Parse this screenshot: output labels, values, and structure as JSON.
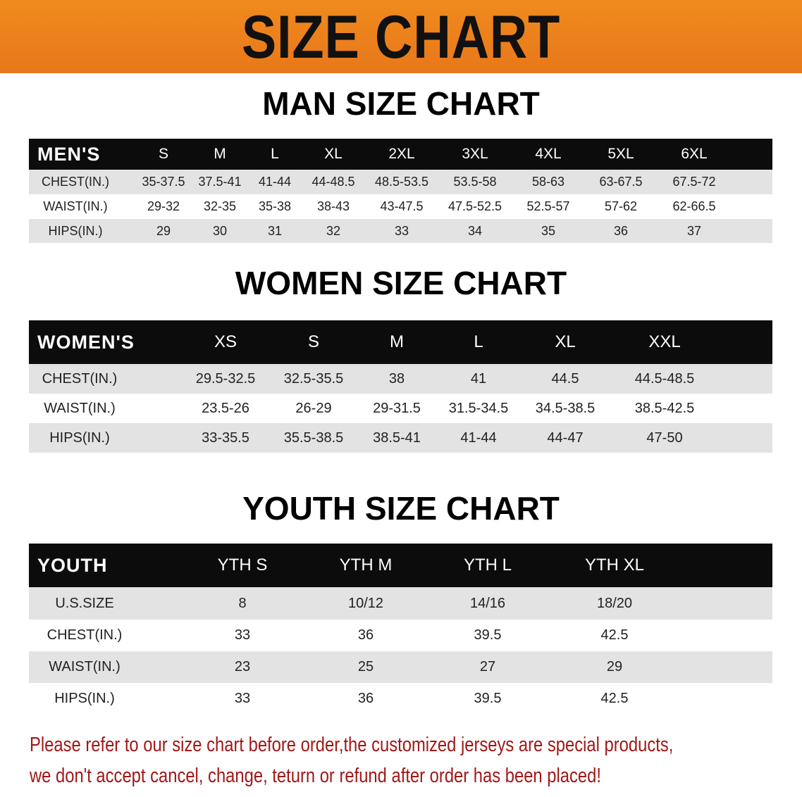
{
  "banner": {
    "title": "SIZE CHART",
    "color": "#ec801c"
  },
  "men": {
    "title": "MAN SIZE CHART",
    "header": [
      "MEN'S",
      "S",
      "M",
      "L",
      "XL",
      "2XL",
      "3XL",
      "4XL",
      "5XL",
      "6XL"
    ],
    "rows": [
      [
        "CHEST(IN.)",
        "35-37.5",
        "37.5-41",
        "41-44",
        "44-48.5",
        "48.5-53.5",
        "53.5-58",
        "58-63",
        "63-67.5",
        "67.5-72"
      ],
      [
        "WAIST(IN.)",
        "29-32",
        "32-35",
        "35-38",
        "38-43",
        "43-47.5",
        "47.5-52.5",
        "52.5-57",
        "57-62",
        "62-66.5"
      ],
      [
        "HIPS(IN.)",
        "29",
        "30",
        "31",
        "32",
        "33",
        "34",
        "35",
        "36",
        "37"
      ]
    ]
  },
  "women": {
    "title": "WOMEN SIZE CHART",
    "header": [
      "WOMEN'S",
      "XS",
      "S",
      "M",
      "L",
      "XL",
      "XXL"
    ],
    "rows": [
      [
        "CHEST(IN.)",
        "29.5-32.5",
        "32.5-35.5",
        "38",
        "41",
        "44.5",
        "44.5-48.5"
      ],
      [
        "WAIST(IN.)",
        "23.5-26",
        "26-29",
        "29-31.5",
        "31.5-34.5",
        "34.5-38.5",
        "38.5-42.5"
      ],
      [
        "HIPS(IN.)",
        "33-35.5",
        "35.5-38.5",
        "38.5-41",
        "41-44",
        "44-47",
        "47-50"
      ]
    ]
  },
  "youth": {
    "title": "YOUTH SIZE CHART",
    "header": [
      "YOUTH",
      "YTH S",
      "YTH M",
      "YTH L",
      "YTH XL"
    ],
    "rows": [
      [
        "U.S.SIZE",
        "8",
        "10/12",
        "14/16",
        "18/20"
      ],
      [
        "CHEST(IN.)",
        "33",
        "36",
        "39.5",
        "42.5"
      ],
      [
        "WAIST(IN.)",
        "23",
        "25",
        "27",
        "29"
      ],
      [
        "HIPS(IN.)",
        "33",
        "36",
        "39.5",
        "42.5"
      ]
    ]
  },
  "notice": {
    "line1": "Please refer to our size chart before order,the customized jerseys are special products,",
    "line2": "we don't accept cancel, change, teturn or refund after order has been placed!",
    "color": "#a01818"
  }
}
